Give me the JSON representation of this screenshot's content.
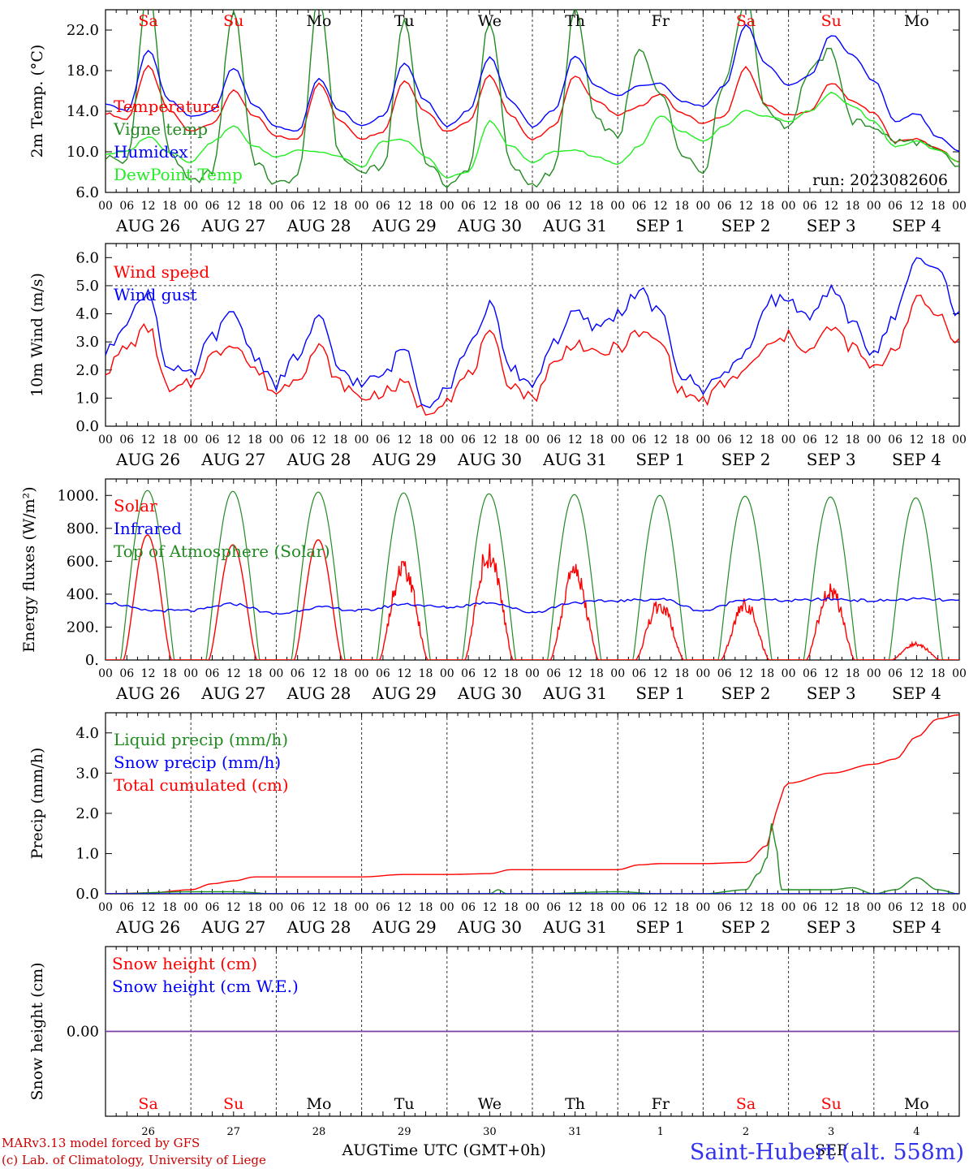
{
  "meta": {
    "run_label": "run: 2023082606",
    "model_line1": "MARv3.13 model forced by GFS",
    "model_line2": "(c) Lab. of Climatology, University of Liege",
    "location": "Saint-Hubert (alt. 558m)",
    "xlabel": "Time UTC (GMT+0h)",
    "bottom_month1": "AUG",
    "bottom_month2": "SEP"
  },
  "days": {
    "weekday_labels": [
      "Sa",
      "Su",
      "Mo",
      "Tu",
      "We",
      "Th",
      "Fr",
      "Sa",
      "Su",
      "Mo"
    ],
    "weekend": [
      true,
      true,
      false,
      false,
      false,
      false,
      false,
      true,
      true,
      false
    ],
    "date_labels": [
      "AUG 26",
      "AUG 27",
      "AUG 28",
      "AUG 29",
      "AUG 30",
      "AUG 31",
      "SEP  1",
      "SEP  2",
      "SEP  3",
      "SEP  4"
    ],
    "day_numbers": [
      "26",
      "27",
      "28",
      "29",
      "30",
      "31",
      "1",
      "2",
      "3",
      "4"
    ],
    "hour_ticks": [
      "00",
      "06",
      "12",
      "18"
    ],
    "last_tick": "00"
  },
  "colors": {
    "red": "#ff0000",
    "green": "#228b22",
    "blue": "#0000ff",
    "lightgreen": "#22ee22",
    "purple": "#7b3fa0",
    "weekend_text": "#ff0000",
    "weekday_text": "#000000",
    "footer_red": "#cc0000",
    "location_blue": "#3333ee"
  },
  "chart_data": [
    {
      "type": "line",
      "ylabel": "2m Temp. (°C)",
      "ylim": [
        6,
        24
      ],
      "yticks": [
        "6.0",
        "10.0",
        "14.0",
        "18.0",
        "22.0"
      ],
      "x_unit": "days since AUG 26 00 UTC",
      "xlim": [
        0,
        10
      ],
      "legend": [
        "Temperature",
        "Vigne temp",
        "Humidex",
        "DewPoint Temp"
      ],
      "series": [
        {
          "name": "Temperature",
          "color": "red",
          "x": [
            0,
            0.25,
            0.5,
            0.75,
            1,
            1.25,
            1.5,
            1.75,
            2,
            2.25,
            2.5,
            2.75,
            3,
            3.25,
            3.5,
            3.75,
            4,
            4.25,
            4.5,
            4.75,
            5,
            5.25,
            5.5,
            5.75,
            6,
            6.25,
            6.5,
            6.75,
            7,
            7.25,
            7.5,
            7.75,
            8,
            8.25,
            8.5,
            8.75,
            9,
            9.25,
            9.5,
            9.75,
            10
          ],
          "y": [
            13.8,
            13.2,
            18.4,
            14.0,
            12.0,
            12.8,
            16.0,
            13.5,
            11.5,
            11.2,
            16.8,
            13.0,
            11.3,
            12.0,
            17.0,
            14.0,
            12.0,
            13.0,
            17.5,
            13.5,
            11.2,
            12.5,
            17.5,
            15.0,
            13.6,
            14.5,
            15.7,
            13.8,
            12.8,
            13.5,
            18.3,
            14.5,
            13.6,
            14.0,
            16.8,
            15.0,
            13.8,
            11.0,
            11.3,
            10.3,
            9.0
          ]
        },
        {
          "name": "Vigne temp",
          "color": "green",
          "x": [
            0,
            0.25,
            0.5,
            0.75,
            1,
            1.25,
            1.5,
            1.75,
            2,
            2.25,
            2.5,
            2.75,
            3,
            3.25,
            3.5,
            3.75,
            4,
            4.25,
            4.5,
            4.75,
            5,
            5.25,
            5.5,
            5.75,
            6,
            6.25,
            6.5,
            6.75,
            7,
            7.25,
            7.5,
            7.75,
            8,
            8.25,
            8.5,
            8.75,
            9,
            9.25,
            9.5,
            9.75,
            10
          ],
          "y": [
            9.5,
            9.0,
            26.0,
            10.0,
            7.0,
            8.0,
            24.0,
            9.0,
            6.8,
            7.5,
            25.0,
            9.5,
            8.0,
            8.5,
            23.0,
            9.0,
            6.8,
            8.0,
            23.0,
            8.5,
            6.8,
            8.0,
            24.0,
            13.0,
            11.5,
            20.0,
            16.0,
            10.0,
            8.0,
            17.0,
            25.0,
            14.0,
            12.5,
            18.0,
            20.0,
            13.0,
            12.5,
            11.0,
            11.0,
            10.0,
            8.5
          ]
        },
        {
          "name": "Humidex",
          "color": "blue",
          "x": [
            0,
            0.25,
            0.5,
            0.75,
            1,
            1.25,
            1.5,
            1.75,
            2,
            2.25,
            2.5,
            2.75,
            3,
            3.25,
            3.5,
            3.75,
            4,
            4.25,
            4.5,
            4.75,
            5,
            5.25,
            5.5,
            5.75,
            6,
            6.25,
            6.5,
            6.75,
            7,
            7.25,
            7.5,
            7.75,
            8,
            8.25,
            8.5,
            8.75,
            9,
            9.25,
            9.5,
            9.75,
            10
          ],
          "y": [
            14.8,
            14.0,
            20.0,
            15.0,
            13.5,
            14.0,
            18.3,
            14.5,
            12.5,
            12.0,
            17.2,
            14.0,
            12.5,
            13.5,
            18.7,
            15.0,
            12.5,
            14.0,
            19.3,
            15.0,
            12.5,
            14.0,
            19.5,
            16.5,
            15.5,
            16.5,
            16.8,
            15.0,
            14.5,
            16.5,
            22.5,
            18.5,
            16.5,
            17.5,
            21.5,
            19.5,
            17.0,
            13.0,
            13.8,
            11.5,
            10.0
          ]
        },
        {
          "name": "DewPoint Temp",
          "color": "lightgreen",
          "x": [
            0,
            0.25,
            0.5,
            0.75,
            1,
            1.25,
            1.5,
            1.75,
            2,
            2.25,
            2.5,
            2.75,
            3,
            3.25,
            3.5,
            3.75,
            4,
            4.25,
            4.5,
            4.75,
            5,
            5.25,
            5.5,
            5.75,
            6,
            6.25,
            6.5,
            6.75,
            7,
            7.25,
            7.5,
            7.75,
            8,
            8.25,
            8.5,
            8.75,
            9,
            9.25,
            9.5,
            9.75,
            10
          ],
          "y": [
            9.8,
            10.0,
            11.5,
            10.0,
            9.0,
            11.0,
            12.5,
            10.5,
            9.5,
            10.2,
            10.0,
            9.5,
            8.5,
            11.0,
            11.2,
            9.5,
            7.5,
            8.0,
            13.0,
            10.5,
            9.0,
            10.0,
            10.2,
            9.5,
            8.8,
            10.5,
            13.5,
            12.0,
            11.0,
            12.5,
            14.0,
            13.5,
            13.0,
            14.0,
            15.8,
            14.5,
            13.0,
            10.5,
            11.0,
            10.2,
            9.0
          ]
        }
      ]
    },
    {
      "type": "line",
      "ylabel": "10m Wind (m/s)",
      "ylim": [
        0,
        6.5
      ],
      "yticks": [
        "0.0",
        "1.0",
        "2.0",
        "3.0",
        "4.0",
        "5.0",
        "6.0"
      ],
      "dashed_reference": 5.0,
      "x_unit": "days since AUG 26 00 UTC",
      "xlim": [
        0,
        10
      ],
      "legend": [
        "Wind speed",
        "Wind gust"
      ],
      "series": [
        {
          "name": "Wind speed",
          "color": "red",
          "x": [
            0,
            0.25,
            0.5,
            0.75,
            1,
            1.25,
            1.5,
            1.75,
            2,
            2.25,
            2.5,
            2.75,
            3,
            3.25,
            3.5,
            3.75,
            4,
            4.25,
            4.5,
            4.75,
            5,
            5.25,
            5.5,
            5.75,
            6,
            6.25,
            6.5,
            6.75,
            7,
            7.25,
            7.5,
            7.75,
            8,
            8.25,
            8.5,
            8.75,
            9,
            9.25,
            9.5,
            9.75,
            10
          ],
          "y": [
            2.0,
            2.8,
            3.5,
            1.2,
            1.5,
            2.5,
            3.0,
            2.0,
            1.2,
            1.8,
            2.8,
            1.5,
            1.0,
            1.2,
            1.5,
            0.5,
            1.0,
            1.8,
            3.2,
            1.5,
            1.0,
            2.2,
            3.0,
            2.5,
            2.8,
            3.3,
            3.0,
            1.2,
            0.9,
            1.5,
            2.0,
            2.8,
            3.2,
            2.7,
            3.5,
            2.8,
            2.0,
            2.8,
            4.5,
            4.0,
            3.0
          ]
        },
        {
          "name": "Wind gust",
          "color": "blue",
          "x": [
            0,
            0.25,
            0.5,
            0.75,
            1,
            1.25,
            1.5,
            1.75,
            2,
            2.25,
            2.5,
            2.75,
            3,
            3.25,
            3.5,
            3.75,
            4,
            4.25,
            4.5,
            4.75,
            5,
            5.25,
            5.5,
            5.75,
            6,
            6.25,
            6.5,
            6.75,
            7,
            7.25,
            7.5,
            7.75,
            8,
            8.25,
            8.5,
            8.75,
            9,
            9.25,
            9.5,
            9.75,
            10
          ],
          "y": [
            2.6,
            3.8,
            4.8,
            2.0,
            1.8,
            3.2,
            4.0,
            2.5,
            1.5,
            2.5,
            3.8,
            2.0,
            1.5,
            1.8,
            2.8,
            0.8,
            1.4,
            2.8,
            4.3,
            2.0,
            1.5,
            3.0,
            4.0,
            3.5,
            4.0,
            4.8,
            4.0,
            1.8,
            1.3,
            2.0,
            2.5,
            4.5,
            4.5,
            3.8,
            4.8,
            3.8,
            2.5,
            4.0,
            6.0,
            5.5,
            4.0
          ]
        }
      ]
    },
    {
      "type": "line",
      "ylabel": "Energy fluxes (W/m²)",
      "ylim": [
        0,
        1100
      ],
      "yticks": [
        "0.",
        "200.",
        "400.",
        "600.",
        "800.",
        "1000."
      ],
      "x_unit": "days since AUG 26 00 UTC",
      "xlim": [
        0,
        10
      ],
      "legend": [
        "Solar",
        "Infrared",
        "Top of Atmosphere (Solar)"
      ],
      "toa_daily_peaks": [
        1030,
        1025,
        1020,
        1015,
        1010,
        1005,
        1000,
        995,
        990,
        985
      ],
      "solar_daily_peaks": [
        760,
        700,
        730,
        640,
        740,
        600,
        380,
        380,
        480,
        110
      ],
      "series": [
        {
          "name": "Infrared",
          "color": "blue",
          "x": [
            0,
            0.5,
            1,
            1.5,
            2,
            2.5,
            3,
            3.5,
            4,
            4.5,
            5,
            5.5,
            6,
            6.5,
            7,
            7.5,
            8,
            8.5,
            9,
            9.5,
            10
          ],
          "y": [
            350,
            300,
            300,
            340,
            280,
            320,
            300,
            340,
            320,
            350,
            290,
            350,
            360,
            370,
            300,
            370,
            360,
            370,
            360,
            370,
            360
          ]
        }
      ]
    },
    {
      "type": "line",
      "ylabel": "Precip (mm/h)",
      "ylim": [
        0,
        4.5
      ],
      "yticks": [
        "0.0",
        "1.0",
        "2.0",
        "3.0",
        "4.0"
      ],
      "x_unit": "days since AUG 26 00 UTC",
      "xlim": [
        0,
        10
      ],
      "legend": [
        "Liquid precip (mm/h)",
        "Snow precip (mm/h)",
        "Total cumulated (cm)"
      ],
      "series": [
        {
          "name": "Total cumulated (cm)",
          "color": "red",
          "x": [
            0,
            0.5,
            1,
            1.25,
            1.5,
            1.75,
            2,
            3,
            3.5,
            4,
            4.5,
            4.75,
            5,
            6,
            6.25,
            6.5,
            7,
            7.5,
            7.75,
            7.85,
            7.95,
            8.0,
            8.5,
            9,
            9.25,
            9.5,
            9.75,
            10
          ],
          "y": [
            0,
            0.02,
            0.1,
            0.25,
            0.32,
            0.42,
            0.42,
            0.42,
            0.48,
            0.48,
            0.5,
            0.6,
            0.6,
            0.6,
            0.72,
            0.75,
            0.75,
            0.78,
            1.2,
            2.0,
            2.65,
            2.75,
            3.0,
            3.22,
            3.35,
            3.9,
            4.35,
            4.45
          ]
        },
        {
          "name": "Liquid precip (mm/h)",
          "color": "green",
          "x": [
            0,
            1,
            1.5,
            2,
            4.5,
            4.6,
            4.7,
            5,
            6,
            6.5,
            7,
            7.5,
            7.65,
            7.75,
            7.8,
            7.85,
            7.92,
            8.0,
            8.5,
            8.75,
            9,
            9.25,
            9.5,
            9.75,
            10
          ],
          "y": [
            0,
            0.05,
            0.05,
            0,
            0,
            0.1,
            0,
            0,
            0.05,
            0,
            0,
            0.1,
            0.5,
            0.9,
            1.75,
            1.2,
            0.1,
            0.1,
            0.1,
            0.15,
            0,
            0.1,
            0.4,
            0.1,
            0
          ]
        },
        {
          "name": "Snow precip (mm/h)",
          "color": "blue",
          "x": [
            0,
            10
          ],
          "y": [
            0,
            0
          ]
        }
      ]
    },
    {
      "type": "line",
      "ylabel": "Snow height (cm)",
      "ylim": [
        -1,
        1
      ],
      "yticks": [
        "0.00"
      ],
      "x_unit": "days since AUG 26 00 UTC",
      "xlim": [
        0,
        10
      ],
      "legend": [
        "Snow height (cm)",
        "Snow height (cm W.E.)"
      ],
      "series": [
        {
          "name": "Snow height (cm)",
          "color": "purple",
          "x": [
            0,
            10
          ],
          "y": [
            0,
            0
          ]
        }
      ]
    }
  ]
}
